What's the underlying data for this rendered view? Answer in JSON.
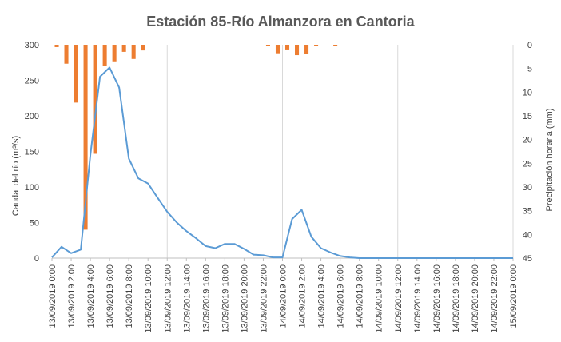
{
  "chart_data": {
    "type": "bar+line",
    "title": "Estación 85-Río Almanzora en Cantoria",
    "ylabel_left": "Caudal del río (m³/s)",
    "ylabel_right": "Precipitación horaria  (mm)",
    "ylim_left": [
      0,
      300
    ],
    "yticks_left": [
      "0",
      "50",
      "100",
      "150",
      "200",
      "250",
      "300"
    ],
    "ylim_right": [
      0,
      45
    ],
    "yticks_right": [
      "0",
      "5",
      "10",
      "15",
      "20",
      "25",
      "30",
      "35",
      "40",
      "45"
    ],
    "right_axis_inverted": true,
    "x_range_hours": [
      0,
      48
    ],
    "x_tick_labels": [
      "13/09/2019 0:00",
      "13/09/2019 2:00",
      "13/09/2019 4:00",
      "13/09/2019 6:00",
      "13/09/2019 8:00",
      "13/09/2019 10:00",
      "13/09/2019 12:00",
      "13/09/2019 14:00",
      "13/09/2019 16:00",
      "13/09/2019 18:00",
      "13/09/2019 20:00",
      "13/09/2019 22:00",
      "14/09/2019 0:00",
      "14/09/2019 2:00",
      "14/09/2019 4:00",
      "14/09/2019 6:00",
      "14/09/2019 8:00",
      "14/09/2019 10:00",
      "14/09/2019 12:00",
      "14/09/2019 14:00",
      "14/09/2019 16:00",
      "14/09/2019 18:00",
      "14/09/2019 20:00",
      "14/09/2019 22:00",
      "15/09/2019 0:00"
    ],
    "grid_vertical": true,
    "series": [
      {
        "type": "line",
        "axis": "left",
        "color": "#5B9BD5",
        "x_hours": [
          0,
          1,
          2,
          3,
          4,
          5,
          6,
          7,
          8,
          9,
          10,
          11,
          12,
          13,
          14,
          15,
          16,
          17,
          18,
          19,
          20,
          21,
          22,
          23,
          24,
          25,
          26,
          27,
          28,
          29,
          30,
          31,
          32,
          33,
          34,
          35,
          36,
          37,
          38,
          39,
          40,
          41,
          42,
          43,
          44,
          45,
          46,
          47,
          48
        ],
        "values": [
          1,
          16,
          7,
          12,
          145,
          255,
          268,
          240,
          140,
          112,
          105,
          85,
          65,
          50,
          38,
          28,
          17,
          14,
          20,
          20,
          13,
          5,
          4,
          1,
          1,
          55,
          68,
          30,
          14,
          8,
          3,
          1,
          0,
          0,
          0,
          0,
          0,
          0,
          0,
          0,
          0,
          0,
          0,
          0,
          0,
          0,
          0,
          0,
          0
        ]
      },
      {
        "type": "bar",
        "axis": "right",
        "color": "#ED7D31",
        "x_hours": [
          0,
          1,
          2,
          3,
          4,
          5,
          6,
          7,
          8,
          9,
          22,
          23,
          24,
          25,
          26,
          27,
          29
        ],
        "values": [
          0.5,
          4,
          12.2,
          39,
          23,
          4.5,
          3.5,
          1.5,
          3,
          1.2,
          0.2,
          1.8,
          1,
          2.2,
          2,
          0.3,
          0.2
        ]
      }
    ]
  }
}
